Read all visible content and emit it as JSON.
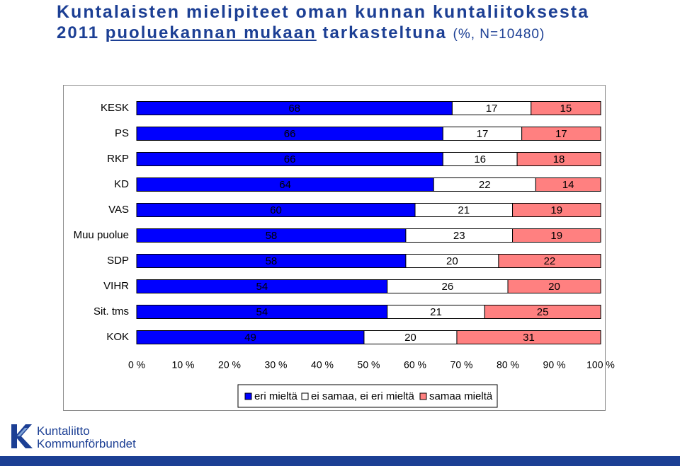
{
  "header": {
    "title_line1": "Kuntalaisten mielipiteet oman kunnan kuntaliitoksesta",
    "title_year": "2011 ",
    "title_underlined": "puoluekannan mukaan",
    "title_rest": " tarkasteltuna ",
    "title_note": "(%, N=10480)"
  },
  "logo": {
    "line1": "Kuntaliitto",
    "line2": "Kommunförbundet"
  },
  "chart_data": {
    "type": "bar",
    "orientation": "horizontal",
    "stacked": "percent",
    "categories": [
      "KESK",
      "PS",
      "RKP",
      "KD",
      "VAS",
      "Muu puolue",
      "SDP",
      "VIHR",
      "Sit. tms",
      "KOK"
    ],
    "series": [
      {
        "name": "eri mieltä",
        "values": [
          68,
          66,
          66,
          64,
          60,
          58,
          58,
          54,
          54,
          49
        ],
        "color": "#0000ff"
      },
      {
        "name": "ei samaa, ei eri mieltä",
        "values": [
          17,
          17,
          16,
          22,
          21,
          23,
          20,
          26,
          21,
          20
        ],
        "color": "#ffffff"
      },
      {
        "name": "samaa mieltä",
        "values": [
          15,
          17,
          18,
          14,
          19,
          19,
          22,
          20,
          25,
          31
        ],
        "color": "#ff8080"
      }
    ],
    "xlim": [
      0,
      100
    ],
    "xticks": [
      "0 %",
      "10 %",
      "20 %",
      "30 %",
      "40 %",
      "50 %",
      "60 %",
      "70 %",
      "80 %",
      "90 %",
      "100 %"
    ],
    "grid": false,
    "legend": "bottom"
  }
}
